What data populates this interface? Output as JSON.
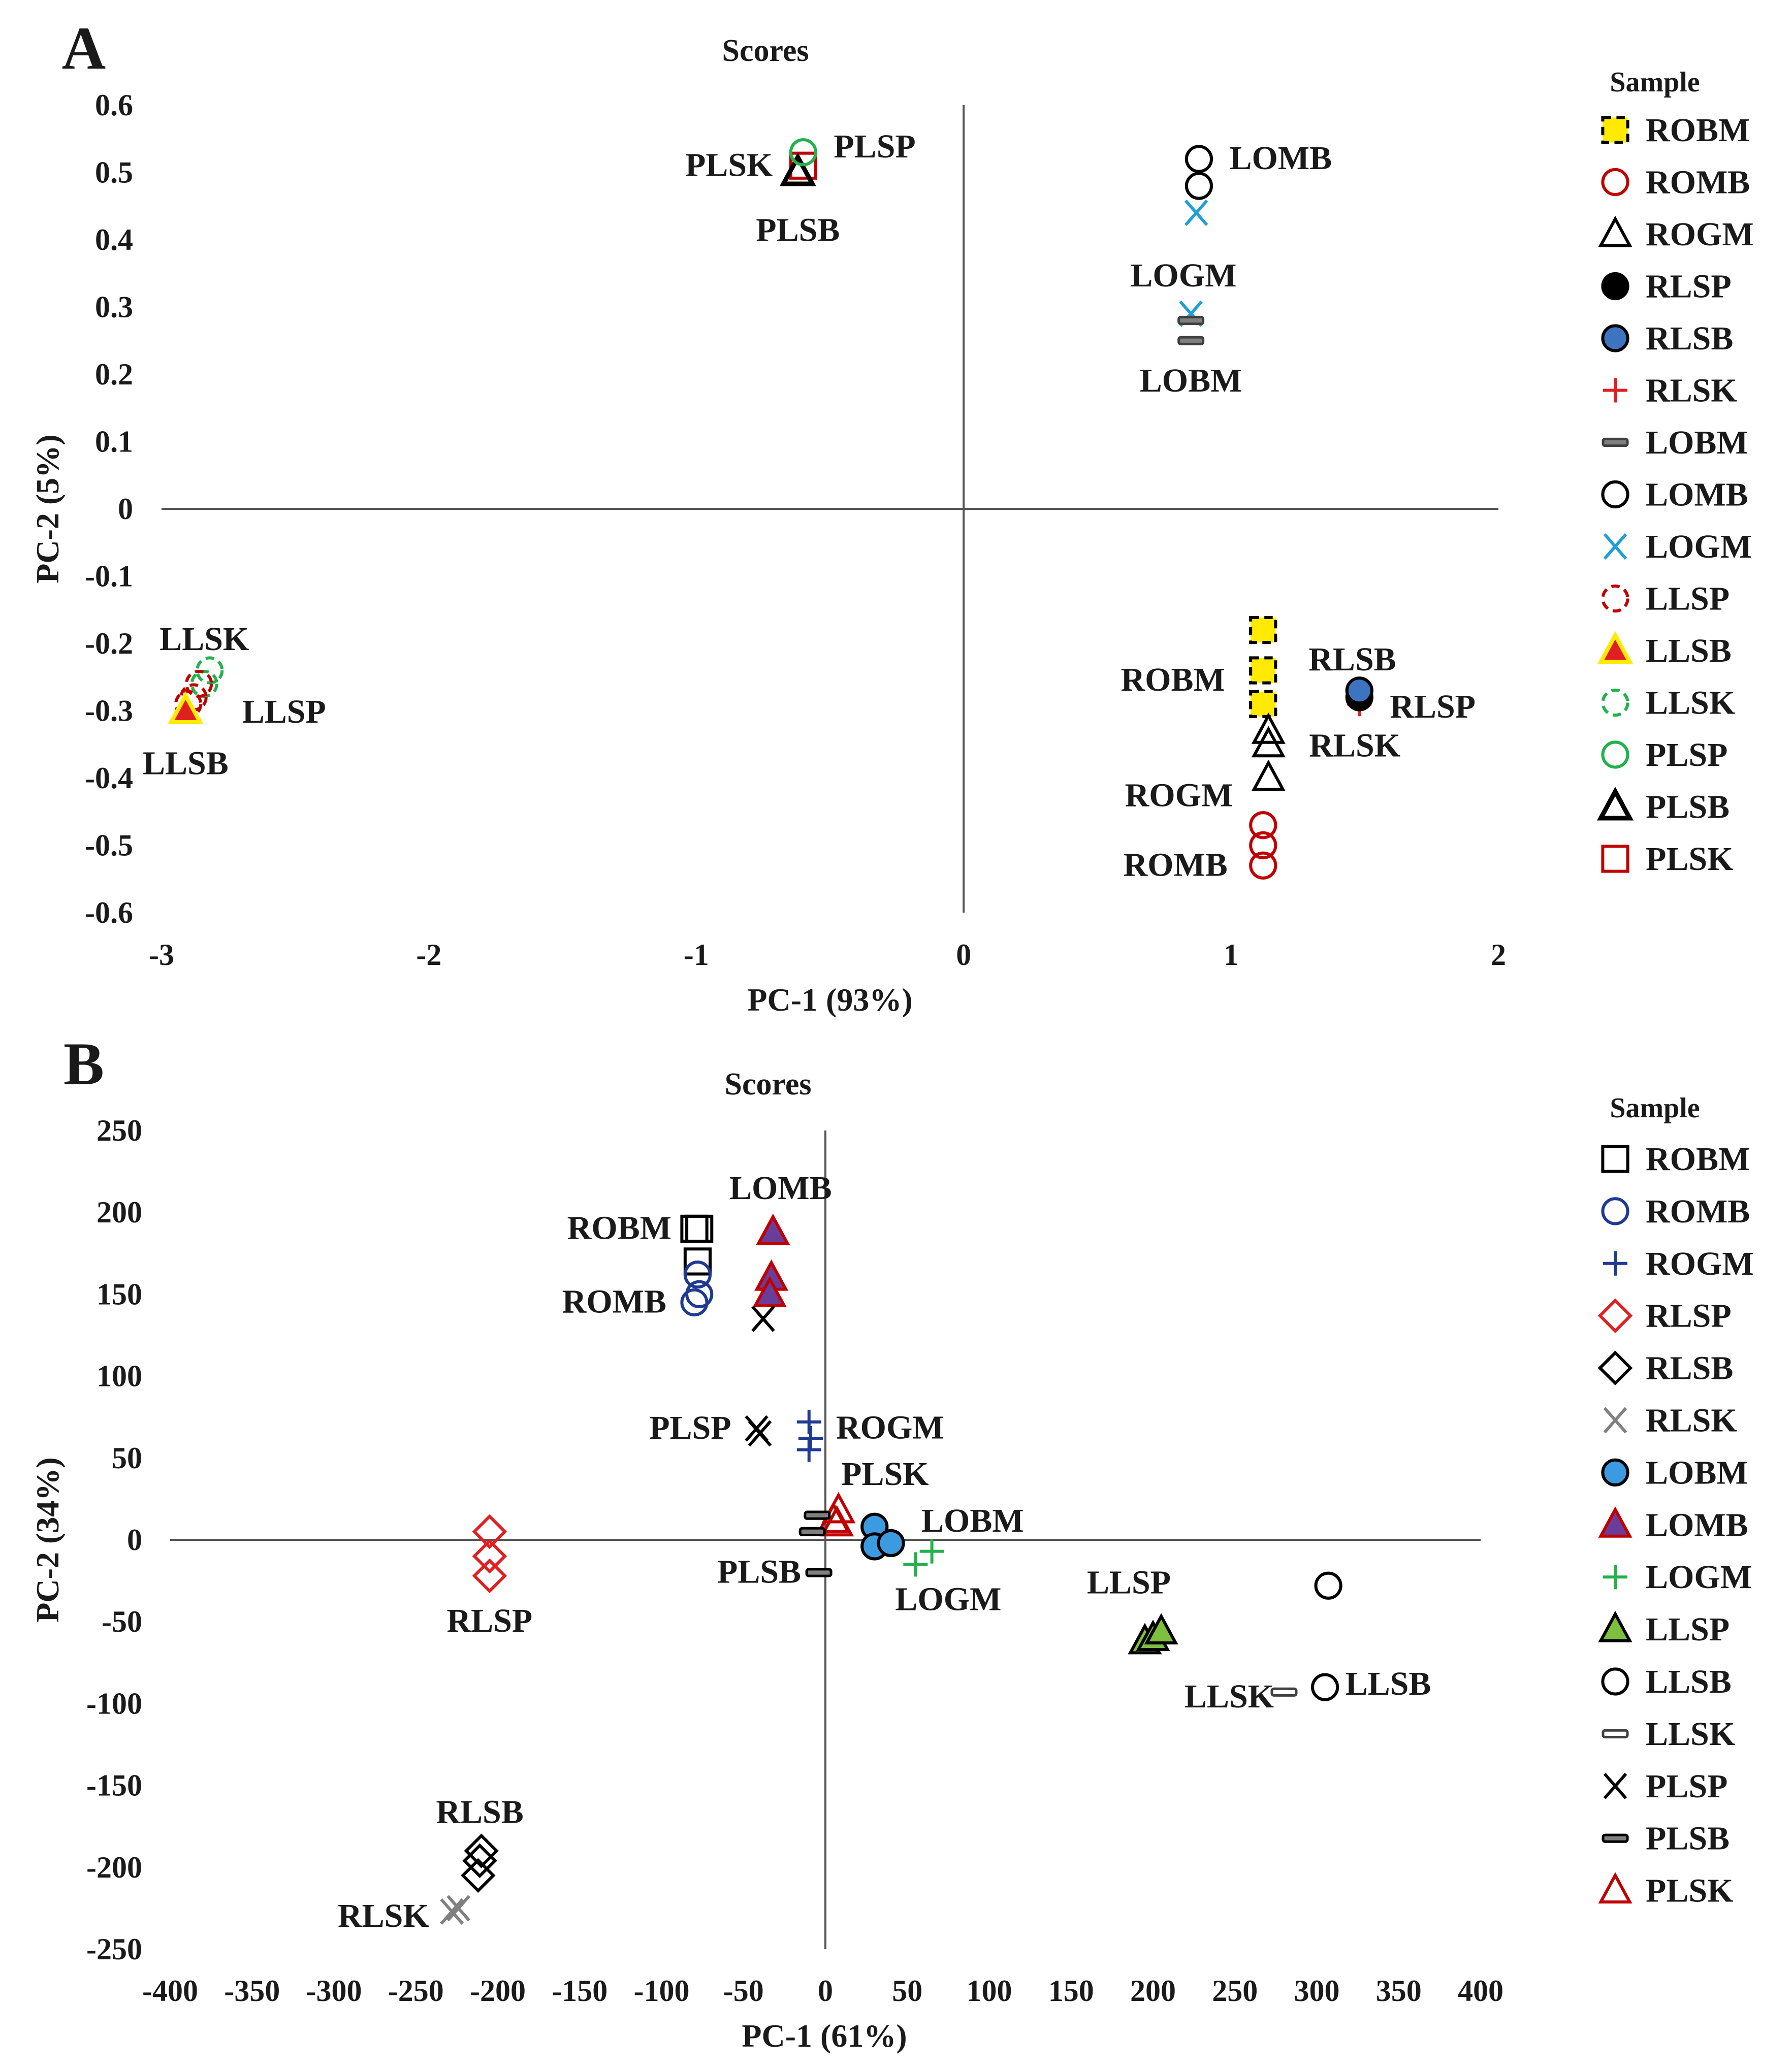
{
  "colors": {
    "black": "#000000",
    "red": "#c00000",
    "brightRed": "#e02020",
    "blue": "#3c74c0",
    "navy": "#1f3a93",
    "cyan": "#1e9fd8",
    "yellow": "#ffea00",
    "green": "#22b14c",
    "lightGreen": "#7fbf3f",
    "purple": "#6a3d9a",
    "gray": "#808080",
    "darkGray": "#404040"
  },
  "chart_data": [
    {
      "panel": "A",
      "type": "scatter",
      "title": "Scores",
      "xlabel": "PC-1 (93%)",
      "ylabel": "PC-2 (5%)",
      "xlim": [
        -3,
        2
      ],
      "ylim": [
        -0.6,
        0.6
      ],
      "xticks": [
        "-3",
        "-2",
        "-1",
        "0",
        "1",
        "2"
      ],
      "yticks": [
        "0.6",
        "0.5",
        "0.4",
        "0.3",
        "0.2",
        "0.1",
        "0",
        "-0.1",
        "-0.2",
        "-0.3",
        "-0.4",
        "-0.5",
        "-0.6"
      ],
      "legend_title": "Sample",
      "legend": [
        {
          "name": "ROBM",
          "marker": "square",
          "stroke": "#000000",
          "fill": "#ffea00",
          "dashed": true
        },
        {
          "name": "ROMB",
          "marker": "circle",
          "stroke": "#c00000",
          "fill": "none"
        },
        {
          "name": "ROGM",
          "marker": "triangle",
          "stroke": "#000000",
          "fill": "none"
        },
        {
          "name": "RLSP",
          "marker": "circle",
          "stroke": "#000000",
          "fill": "#000000"
        },
        {
          "name": "RLSB",
          "marker": "circle",
          "stroke": "#000000",
          "fill": "#3c74c0"
        },
        {
          "name": "RLSK",
          "marker": "plus",
          "stroke": "#e02020",
          "fill": "none"
        },
        {
          "name": "LOBM",
          "marker": "dash",
          "stroke": "#404040",
          "fill": "#808080"
        },
        {
          "name": "LOMB",
          "marker": "circle",
          "stroke": "#000000",
          "fill": "none"
        },
        {
          "name": "LOGM",
          "marker": "x",
          "stroke": "#1e9fd8",
          "fill": "none"
        },
        {
          "name": "LLSP",
          "marker": "circle",
          "stroke": "#c00000",
          "fill": "none",
          "dashed": true
        },
        {
          "name": "LLSB",
          "marker": "triangle",
          "stroke": "#ffea00",
          "fill": "#e02020"
        },
        {
          "name": "LLSK",
          "marker": "circle",
          "stroke": "#22b14c",
          "fill": "none",
          "dashed": true
        },
        {
          "name": "PLSP",
          "marker": "circle",
          "stroke": "#22b14c",
          "fill": "none"
        },
        {
          "name": "PLSB",
          "marker": "triangle",
          "stroke": "#000000",
          "fill": "none",
          "thick": true
        },
        {
          "name": "PLSK",
          "marker": "square",
          "stroke": "#c00000",
          "fill": "none"
        }
      ],
      "series": [
        {
          "name": "PLSK",
          "points": [
            [
              -0.6,
              0.51
            ]
          ]
        },
        {
          "name": "PLSB",
          "points": [
            [
              -0.62,
              0.5
            ]
          ]
        },
        {
          "name": "PLSP",
          "points": [
            [
              -0.6,
              0.53
            ]
          ]
        },
        {
          "name": "LOMB",
          "points": [
            [
              0.88,
              0.52
            ],
            [
              0.88,
              0.48
            ]
          ]
        },
        {
          "name": "LOGM",
          "points": [
            [
              0.87,
              0.44
            ],
            [
              0.85,
              0.29
            ]
          ]
        },
        {
          "name": "LOBM",
          "points": [
            [
              0.85,
              0.28
            ],
            [
              0.85,
              0.25
            ]
          ]
        },
        {
          "name": "ROBM",
          "points": [
            [
              1.12,
              -0.18
            ],
            [
              1.12,
              -0.24
            ],
            [
              1.12,
              -0.29
            ]
          ]
        },
        {
          "name": "ROGM",
          "points": [
            [
              1.14,
              -0.33
            ],
            [
              1.14,
              -0.35
            ],
            [
              1.14,
              -0.4
            ]
          ]
        },
        {
          "name": "ROMB",
          "points": [
            [
              1.12,
              -0.47
            ],
            [
              1.12,
              -0.5
            ],
            [
              1.12,
              -0.53
            ]
          ]
        },
        {
          "name": "RLSK",
          "points": [
            [
              1.48,
              -0.29
            ]
          ]
        },
        {
          "name": "RLSP",
          "points": [
            [
              1.48,
              -0.28
            ]
          ]
        },
        {
          "name": "RLSB",
          "points": [
            [
              1.48,
              -0.27
            ]
          ]
        },
        {
          "name": "LLSK",
          "points": [
            [
              -2.82,
              -0.24
            ],
            [
              -2.84,
              -0.26
            ]
          ]
        },
        {
          "name": "LLSP",
          "points": [
            [
              -2.86,
              -0.26
            ],
            [
              -2.88,
              -0.28
            ],
            [
              -2.9,
              -0.29
            ]
          ]
        },
        {
          "name": "LLSB",
          "points": [
            [
              -2.91,
              -0.3
            ]
          ]
        }
      ],
      "annotations": [
        {
          "text": "PLSK",
          "x": -0.6,
          "y": 0.51
        },
        {
          "text": "PLSP",
          "x": -0.6,
          "y": 0.53
        },
        {
          "text": "PLSB",
          "x": -0.62,
          "y": 0.5
        },
        {
          "text": "LOMB",
          "x": 0.88,
          "y": 0.52
        },
        {
          "text": "LOGM",
          "x": 0.86,
          "y": 0.44
        },
        {
          "text": "LOBM",
          "x": 0.85,
          "y": 0.25
        },
        {
          "text": "RLSB",
          "x": 1.48,
          "y": -0.27
        },
        {
          "text": "RLSP",
          "x": 1.48,
          "y": -0.28
        },
        {
          "text": "ROBM",
          "x": 1.12,
          "y": -0.24
        },
        {
          "text": "RLSK",
          "x": 1.14,
          "y": -0.33
        },
        {
          "text": "ROGM",
          "x": 1.14,
          "y": -0.37
        },
        {
          "text": "ROMB",
          "x": 1.12,
          "y": -0.5
        },
        {
          "text": "LLSK",
          "x": -2.84,
          "y": -0.24
        },
        {
          "text": "LLSP",
          "x": -2.86,
          "y": -0.28
        },
        {
          "text": "LLSB",
          "x": -2.91,
          "y": -0.3
        }
      ]
    },
    {
      "panel": "B",
      "type": "scatter",
      "title": "Scores",
      "xlabel": "PC-1 (61%)",
      "ylabel": "PC-2 (34%)",
      "xlim": [
        -400,
        400
      ],
      "ylim": [
        -250,
        250
      ],
      "xticks": [
        "-400",
        "-350",
        "-300",
        "-250",
        "-200",
        "-150",
        "-100",
        "-50",
        "0",
        "50",
        "100",
        "150",
        "200",
        "250",
        "300",
        "350",
        "400"
      ],
      "yticks": [
        "250",
        "200",
        "150",
        "100",
        "50",
        "0",
        "-50",
        "-100",
        "-150",
        "-200",
        "-250"
      ],
      "legend_title": "Sample",
      "legend": [
        {
          "name": "ROBM",
          "marker": "square",
          "stroke": "#000000",
          "fill": "none"
        },
        {
          "name": "ROMB",
          "marker": "circle",
          "stroke": "#1f3a93",
          "fill": "none"
        },
        {
          "name": "ROGM",
          "marker": "plus",
          "stroke": "#1f3a93",
          "fill": "none"
        },
        {
          "name": "RLSP",
          "marker": "diamond",
          "stroke": "#e02020",
          "fill": "none"
        },
        {
          "name": "RLSB",
          "marker": "diamond",
          "stroke": "#000000",
          "fill": "none"
        },
        {
          "name": "RLSK",
          "marker": "x",
          "stroke": "#808080",
          "fill": "none"
        },
        {
          "name": "LOBM",
          "marker": "circle",
          "stroke": "#000000",
          "fill": "#3c9be0"
        },
        {
          "name": "LOMB",
          "marker": "triangle",
          "stroke": "#c00000",
          "fill": "#6a3d9a"
        },
        {
          "name": "LOGM",
          "marker": "plus",
          "stroke": "#22b14c",
          "fill": "none"
        },
        {
          "name": "LLSP",
          "marker": "triangle",
          "stroke": "#000000",
          "fill": "#7fbf3f"
        },
        {
          "name": "LLSB",
          "marker": "circle",
          "stroke": "#000000",
          "fill": "none"
        },
        {
          "name": "LLSK",
          "marker": "dash",
          "stroke": "#404040",
          "fill": "#ffffff"
        },
        {
          "name": "PLSP",
          "marker": "x",
          "stroke": "#000000",
          "fill": "none"
        },
        {
          "name": "PLSB",
          "marker": "dash",
          "stroke": "#000000",
          "fill": "#808080"
        },
        {
          "name": "PLSK",
          "marker": "triangle",
          "stroke": "#c00000",
          "fill": "none"
        }
      ],
      "series": [
        {
          "name": "ROBM",
          "points": [
            [
              -80,
              190
            ],
            [
              -77,
              190
            ],
            [
              -78,
              170
            ]
          ]
        },
        {
          "name": "ROMB",
          "points": [
            [
              -78,
              162
            ],
            [
              -77,
              150
            ],
            [
              -80,
              145
            ]
          ]
        },
        {
          "name": "LOMB",
          "points": [
            [
              -32,
              188
            ],
            [
              -33,
              160
            ],
            [
              -34,
              150
            ]
          ]
        },
        {
          "name": "PLSP",
          "points": [
            [
              -38,
              135
            ],
            [
              -42,
              68
            ],
            [
              -40,
              65
            ]
          ]
        },
        {
          "name": "ROGM",
          "points": [
            [
              -10,
              72
            ],
            [
              -9,
              62
            ],
            [
              -10,
              55
            ]
          ]
        },
        {
          "name": "PLSK",
          "points": [
            [
              8,
              18
            ],
            [
              5,
              12
            ],
            [
              7,
              10
            ]
          ]
        },
        {
          "name": "PLSB",
          "points": [
            [
              -5,
              15
            ],
            [
              -8,
              5
            ],
            [
              -4,
              -20
            ]
          ]
        },
        {
          "name": "LOBM",
          "points": [
            [
              30,
              8
            ],
            [
              30,
              -4
            ],
            [
              40,
              -2
            ]
          ]
        },
        {
          "name": "LOGM",
          "points": [
            [
              55,
              -15
            ],
            [
              65,
              -7
            ]
          ]
        },
        {
          "name": "RLSP",
          "points": [
            [
              -205,
              5
            ],
            [
              -205,
              -10
            ],
            [
              -205,
              -22
            ]
          ]
        },
        {
          "name": "LLSP",
          "points": [
            [
              195,
              -62
            ],
            [
              200,
              -60
            ],
            [
              205,
              -56
            ]
          ]
        },
        {
          "name": "LLSB",
          "points": [
            [
              307,
              -28
            ],
            [
              305,
              -90
            ]
          ]
        },
        {
          "name": "LLSK",
          "points": [
            [
              280,
              -93
            ]
          ]
        },
        {
          "name": "RLSB",
          "points": [
            [
              -210,
              -190
            ],
            [
              -211,
              -196
            ],
            [
              -212,
              -205
            ]
          ]
        },
        {
          "name": "RLSK",
          "points": [
            [
              -228,
              -227
            ],
            [
              -224,
              -225
            ]
          ]
        }
      ],
      "annotations": [
        {
          "text": "LOMB",
          "x": -32,
          "y": 188
        },
        {
          "text": "ROBM",
          "x": -80,
          "y": 190
        },
        {
          "text": "ROMB",
          "x": -80,
          "y": 145
        },
        {
          "text": "PLSP",
          "x": -42,
          "y": 68
        },
        {
          "text": "ROGM",
          "x": -9,
          "y": 65
        },
        {
          "text": "PLSK",
          "x": 5,
          "y": 18
        },
        {
          "text": "LOBM",
          "x": 40,
          "y": 5
        },
        {
          "text": "PLSB",
          "x": -4,
          "y": -20
        },
        {
          "text": "LOGM",
          "x": 55,
          "y": -15
        },
        {
          "text": "RLSP",
          "x": -205,
          "y": -22
        },
        {
          "text": "LLSP",
          "x": 200,
          "y": -56
        },
        {
          "text": "LLSK",
          "x": 280,
          "y": -93
        },
        {
          "text": "LLSB",
          "x": 305,
          "y": -90
        },
        {
          "text": "RLSB",
          "x": -211,
          "y": -190
        },
        {
          "text": "RLSK",
          "x": -228,
          "y": -227
        }
      ]
    }
  ]
}
